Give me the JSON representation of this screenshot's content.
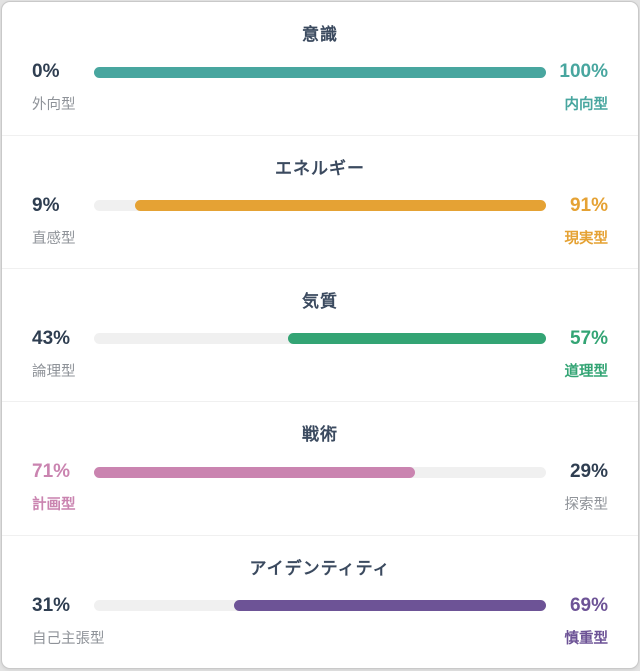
{
  "chart_data": {
    "type": "bar",
    "layout": "horizontal-diverging-sliders",
    "traits": [
      {
        "title": "意識",
        "color": "#48a69f",
        "dominant": "right",
        "left": {
          "label": "外向型",
          "value": 0,
          "percent": "0%"
        },
        "right": {
          "label": "内向型",
          "value": 100,
          "percent": "100%"
        }
      },
      {
        "title": "エネルギー",
        "color": "#e5a234",
        "dominant": "right",
        "left": {
          "label": "直感型",
          "value": 9,
          "percent": "9%"
        },
        "right": {
          "label": "現実型",
          "value": 91,
          "percent": "91%"
        }
      },
      {
        "title": "気質",
        "color": "#33a474",
        "dominant": "right",
        "left": {
          "label": "論理型",
          "value": 43,
          "percent": "43%"
        },
        "right": {
          "label": "道理型",
          "value": 57,
          "percent": "57%"
        }
      },
      {
        "title": "戦術",
        "color": "#ca84b0",
        "dominant": "left",
        "left": {
          "label": "計画型",
          "value": 71,
          "percent": "71%"
        },
        "right": {
          "label": "探索型",
          "value": 29,
          "percent": "29%"
        }
      },
      {
        "title": "アイデンティティ",
        "color": "#6d5396",
        "dominant": "right",
        "left": {
          "label": "自己主張型",
          "value": 31,
          "percent": "31%"
        },
        "right": {
          "label": "慎重型",
          "value": 69,
          "percent": "69%"
        }
      }
    ]
  }
}
